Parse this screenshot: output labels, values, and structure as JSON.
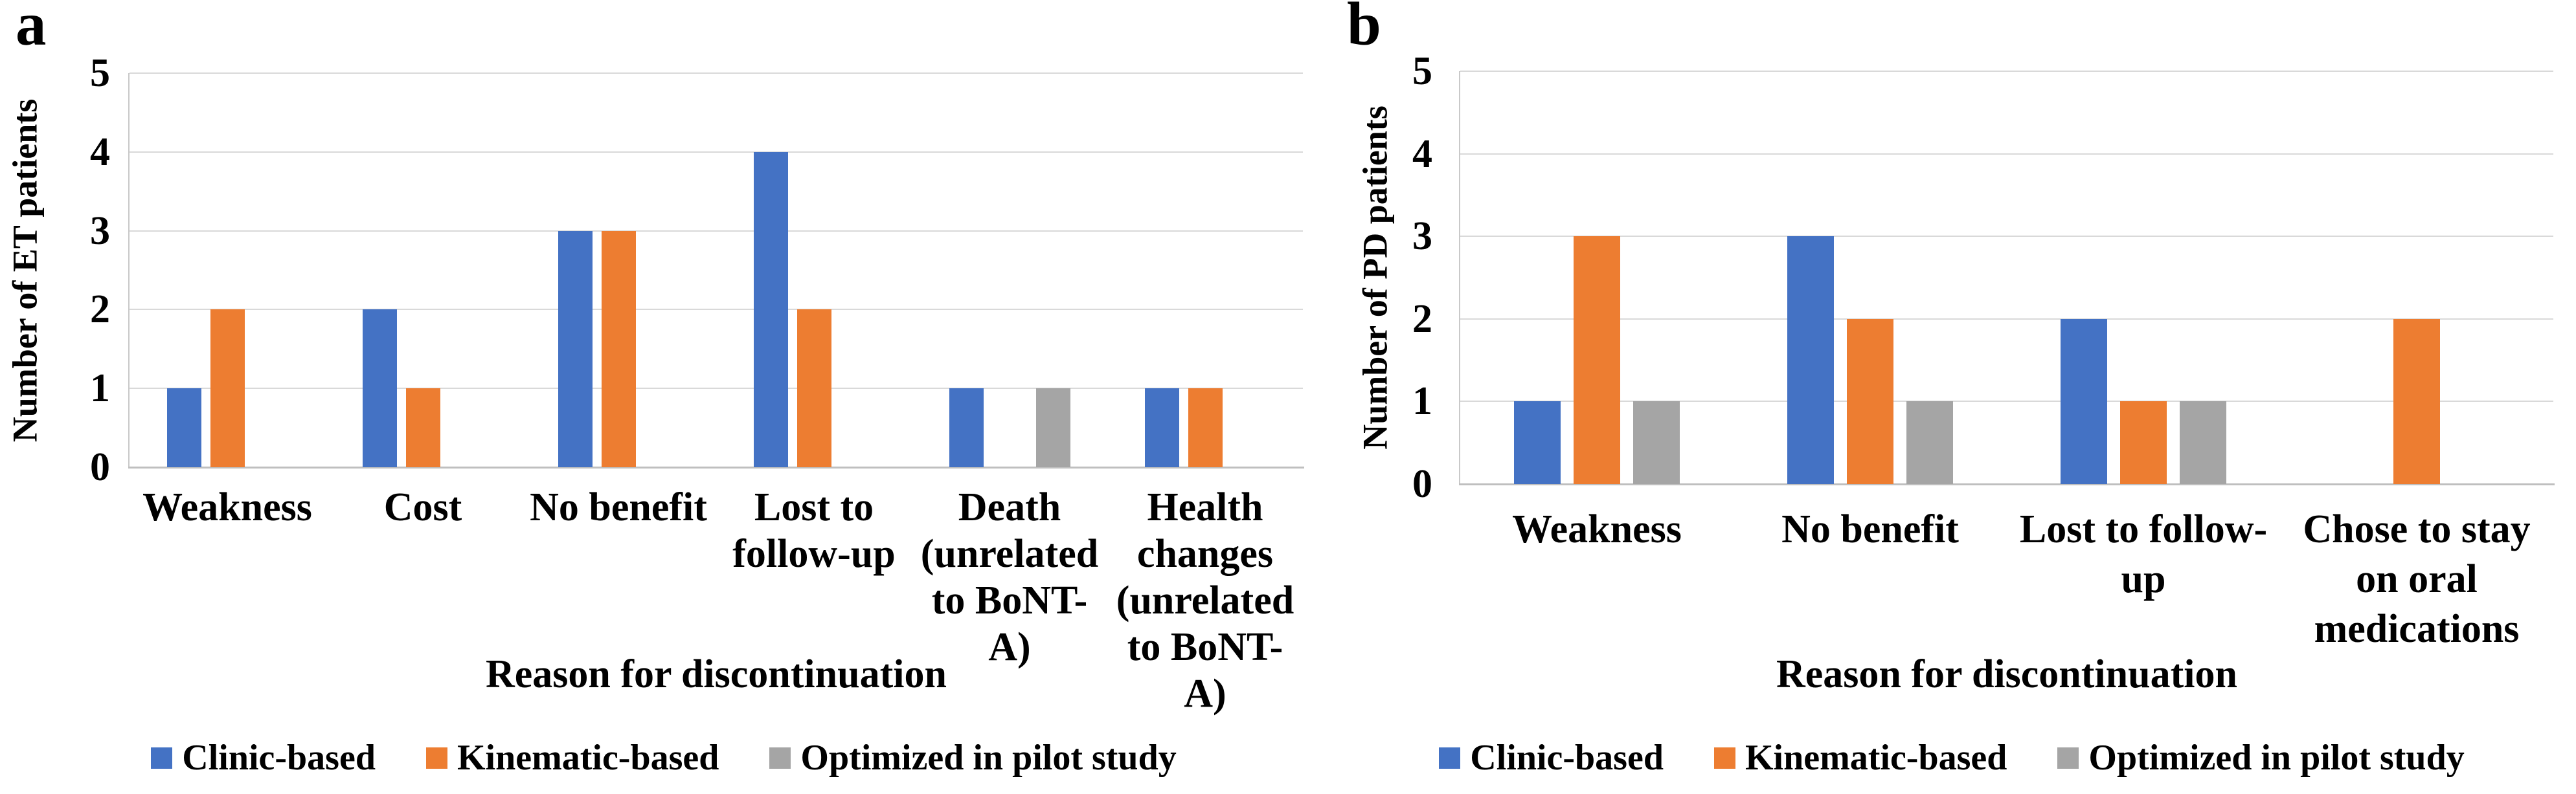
{
  "figure": {
    "background": "#FFFFFF",
    "text_color": "#000000",
    "gridline_color": "#D9D9D9",
    "axis_color": "#BFBFBF"
  },
  "chart_data": [
    {
      "panel_label": "a",
      "type": "bar",
      "title": "",
      "ylabel": "Number of ET patients",
      "xlabel": "Reason for discontinuation",
      "ylim": [
        0,
        5
      ],
      "yticks": [
        "0",
        "1",
        "2",
        "3",
        "4",
        "5"
      ],
      "grid": "horizontal",
      "legend_position": "bottom",
      "categories": [
        "Weakness",
        "Cost",
        "No benefit",
        "Lost to follow-up",
        "Death (unrelated to BoNT-A)",
        "Health changes (unrelated to BoNT-A)"
      ],
      "category_lines": [
        [
          "Weakness"
        ],
        [
          "Cost"
        ],
        [
          "No benefit"
        ],
        [
          "Lost to",
          "follow-up"
        ],
        [
          "Death",
          "(unrelated",
          "to BoNT-A)"
        ],
        [
          "Health",
          "changes",
          "(unrelated",
          "to BoNT-A)"
        ]
      ],
      "series": [
        {
          "name": "Clinic-based",
          "color": "#4472C4",
          "values": [
            1,
            2,
            3,
            4,
            1,
            1
          ]
        },
        {
          "name": "Kinematic-based",
          "color": "#ED7D31",
          "values": [
            2,
            1,
            3,
            2,
            0,
            1
          ]
        },
        {
          "name": "Optimized in pilot study",
          "color": "#A5A5A5",
          "values": [
            0,
            0,
            0,
            0,
            1,
            0
          ]
        }
      ]
    },
    {
      "panel_label": "b",
      "type": "bar",
      "title": "",
      "ylabel": "Number of PD patients",
      "xlabel": "Reason for discontinuation",
      "ylim": [
        0,
        5
      ],
      "yticks": [
        "0",
        "1",
        "2",
        "3",
        "4",
        "5"
      ],
      "grid": "horizontal",
      "legend_position": "bottom",
      "categories": [
        "Weakness",
        "No benefit",
        "Lost to follow-up",
        "Chose to stay on oral medications"
      ],
      "category_lines": [
        [
          "Weakness"
        ],
        [
          "No benefit"
        ],
        [
          "Lost to follow-",
          "up"
        ],
        [
          "Chose to stay",
          "on oral",
          "medications"
        ]
      ],
      "series": [
        {
          "name": "Clinic-based",
          "color": "#4472C4",
          "values": [
            1,
            3,
            2,
            0
          ]
        },
        {
          "name": "Kinematic-based",
          "color": "#ED7D31",
          "values": [
            3,
            2,
            1,
            2
          ]
        },
        {
          "name": "Optimized in pilot study",
          "color": "#A5A5A5",
          "values": [
            1,
            1,
            1,
            0
          ]
        }
      ]
    }
  ]
}
